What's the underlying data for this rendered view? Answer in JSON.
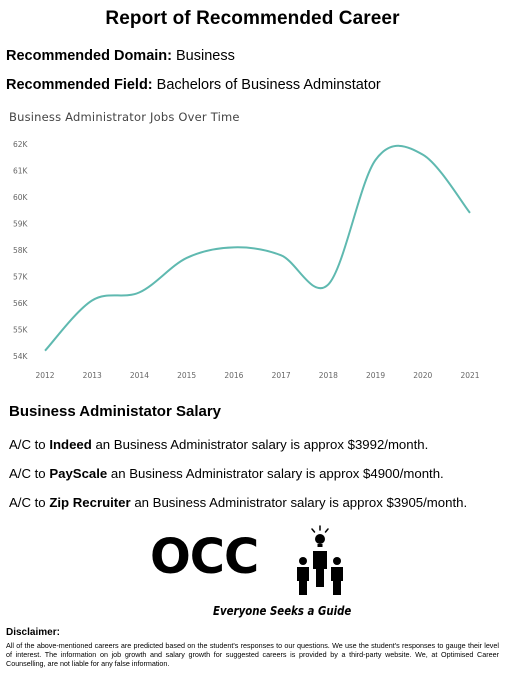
{
  "report": {
    "title": "Report of Recommended Career",
    "domain_label": "Recommended Domain:",
    "domain_value": "Business",
    "field_label": "Recommended Field:",
    "field_value": "Bachelors of Business Adminstator"
  },
  "chart_data": {
    "type": "line",
    "title": "Business Administrator Jobs Over Time",
    "x": [
      2012,
      2013,
      2014,
      2015,
      2016,
      2017,
      2018,
      2019,
      2020,
      2021
    ],
    "xticks": [
      "2012",
      "2013",
      "2014",
      "2015",
      "2016",
      "2017",
      "2018",
      "2019",
      "2020",
      "2021"
    ],
    "yticks": [
      "54K",
      "55K",
      "56K",
      "57K",
      "58K",
      "59K",
      "60K",
      "61K",
      "62K"
    ],
    "series": [
      {
        "values": [
          54200,
          56100,
          56400,
          57700,
          58100,
          57800,
          56700,
          61400,
          61600,
          59400
        ]
      }
    ],
    "ylim": [
      54000,
      62000
    ],
    "grid": false,
    "line_color": "#5fb9b0"
  },
  "salary": {
    "title": "Business Administator Salary",
    "lines": [
      {
        "prefix": "A/C to ",
        "source": "Indeed",
        "suffix": " an Business Administrator salary is approx $3992/month."
      },
      {
        "prefix": "A/C to ",
        "source": "PayScale",
        "suffix": " an Business Administrator salary is approx $4900/month."
      },
      {
        "prefix": "A/C to ",
        "source": "Zip Recruiter",
        "suffix": " an Business Administrator salary is approx $3905/month."
      }
    ]
  },
  "logo": {
    "text": "OCC",
    "tagline": "Everyone Seeks a Guide",
    "icon": "people-with-lightbulb-icon"
  },
  "disclaimer": {
    "title": "Disclaimer:",
    "text": "All of the above-mentioned careers are predicted based on the student's responses to our questions. We use the student's responses to gauge their level of interest. The information on job growth and salary growth for suggested careers is provided by a third-party website. We, at Optimised Career Counselling, are not liable for any false information."
  }
}
